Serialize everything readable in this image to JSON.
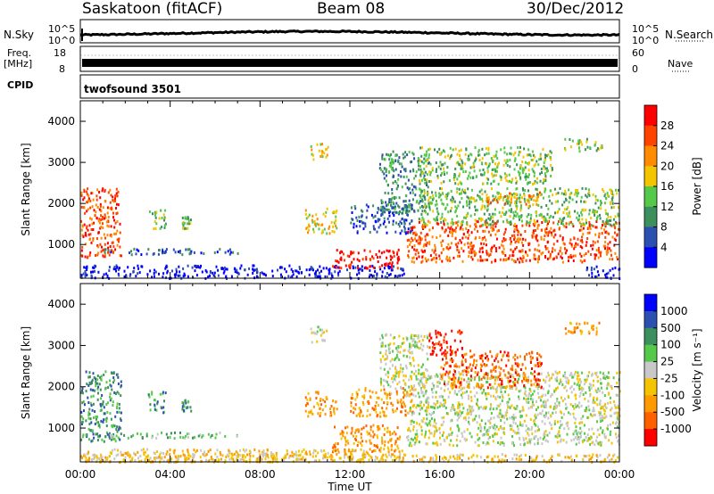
{
  "header": {
    "station": "Saskatoon (fitACF)",
    "beam": "Beam 08",
    "date": "30/Dec/2012"
  },
  "summary_panels": {
    "nsky_label": "N.Sky",
    "nsky_ticks": [
      "10^5",
      "10^0"
    ],
    "nsearch_label": "N.Search",
    "nsearch_ticks": [
      "10^5",
      "10^0"
    ],
    "freq_label_1": "Freq.",
    "freq_label_2": "[MHz]",
    "freq_ticks": [
      "18",
      "8"
    ],
    "nave_label": "Nave",
    "nave_ticks": [
      "60",
      "0"
    ],
    "cpid_label": "CPID",
    "cpid_value": "twofsound 3501",
    "line_color": "#000000"
  },
  "chart_data": [
    {
      "type": "heatmap",
      "panel": "power",
      "ylabel": "Slant Range [km]",
      "y_ticks": [
        1000,
        2000,
        3000,
        4000
      ],
      "ylim": [
        180,
        4500
      ],
      "xlim_hours": [
        0,
        24
      ],
      "colorbar_label": "Power [dB]",
      "colorbar_ticks": [
        "28",
        "24",
        "20",
        "16",
        "12",
        "8",
        "4"
      ],
      "colorbar_colors": [
        "#0000ff",
        "#2b50b0",
        "#3d8f5e",
        "#55c94a",
        "#f5c400",
        "#ff8c00",
        "#ff4400",
        "#ff0000"
      ],
      "scatter_blobs": [
        {
          "t0": 0.0,
          "t1": 1.8,
          "r0": 700,
          "r1": 2400,
          "level": 6
        },
        {
          "t0": 1.0,
          "t1": 7.0,
          "r0": 780,
          "r1": 920,
          "level": 1
        },
        {
          "t0": 3.0,
          "t1": 3.8,
          "r0": 1400,
          "r1": 1900,
          "level": 3
        },
        {
          "t0": 4.5,
          "t1": 4.9,
          "r0": 1400,
          "r1": 1700,
          "level": 3
        },
        {
          "t0": 0.0,
          "t1": 14.5,
          "r0": 200,
          "r1": 520,
          "level": 0
        },
        {
          "t0": 10.0,
          "t1": 11.4,
          "r0": 1300,
          "r1": 1900,
          "level": 4
        },
        {
          "t0": 11.2,
          "t1": 14.2,
          "r0": 450,
          "r1": 900,
          "level": 7
        },
        {
          "t0": 12.0,
          "t1": 14.8,
          "r0": 1300,
          "r1": 2000,
          "level": 1
        },
        {
          "t0": 10.2,
          "t1": 11.0,
          "r0": 3100,
          "r1": 3500,
          "level": 4
        },
        {
          "t0": 13.3,
          "t1": 15.5,
          "r0": 1800,
          "r1": 3300,
          "level": 2
        },
        {
          "t0": 14.5,
          "t1": 24.0,
          "r0": 600,
          "r1": 1600,
          "level": 6
        },
        {
          "t0": 15.0,
          "t1": 24.0,
          "r0": 1500,
          "r1": 2400,
          "level": 3
        },
        {
          "t0": 18.0,
          "t1": 20.5,
          "r0": 2000,
          "r1": 2300,
          "level": 5
        },
        {
          "t0": 15.0,
          "t1": 21.0,
          "r0": 2500,
          "r1": 3400,
          "level": 3
        },
        {
          "t0": 21.5,
          "t1": 23.2,
          "r0": 3300,
          "r1": 3600,
          "level": 3
        },
        {
          "t0": 22.5,
          "t1": 24.0,
          "r0": 200,
          "r1": 500,
          "level": 0
        }
      ]
    },
    {
      "type": "heatmap",
      "panel": "velocity",
      "ylabel": "Slant Range [km]",
      "xlabel": "Time UT",
      "x_ticks": [
        "00:00",
        "04:00",
        "08:00",
        "12:00",
        "16:00",
        "20:00",
        "00:00"
      ],
      "y_ticks": [
        1000,
        2000,
        3000,
        4000
      ],
      "ylim": [
        180,
        4500
      ],
      "xlim_hours": [
        0,
        24
      ],
      "colorbar_label": "Velocity [m s⁻¹]",
      "colorbar_ticks": [
        "1000",
        "500",
        "100",
        "25",
        "-25",
        "-100",
        "-500",
        "-1000"
      ],
      "colorbar_colors": [
        "#ff0000",
        "#ff6000",
        "#ff9a00",
        "#f5c400",
        "#c8c8c8",
        "#55c94a",
        "#3d8f5e",
        "#2b50b0",
        "#0000ff"
      ],
      "scatter_blobs": [
        {
          "t0": 0.0,
          "t1": 1.8,
          "r0": 700,
          "r1": 2400,
          "level": 6
        },
        {
          "t0": 1.0,
          "t1": 7.0,
          "r0": 780,
          "r1": 920,
          "level": 5
        },
        {
          "t0": 3.0,
          "t1": 3.8,
          "r0": 1400,
          "r1": 1900,
          "level": 6
        },
        {
          "t0": 4.5,
          "t1": 4.9,
          "r0": 1400,
          "r1": 1700,
          "level": 6
        },
        {
          "t0": 0.0,
          "t1": 14.5,
          "r0": 200,
          "r1": 520,
          "level": 3
        },
        {
          "t0": 10.0,
          "t1": 11.4,
          "r0": 1300,
          "r1": 1900,
          "level": 2
        },
        {
          "t0": 11.2,
          "t1": 14.2,
          "r0": 450,
          "r1": 1100,
          "level": 2
        },
        {
          "t0": 12.0,
          "t1": 14.8,
          "r0": 1300,
          "r1": 2000,
          "level": 2
        },
        {
          "t0": 10.2,
          "t1": 11.0,
          "r0": 3100,
          "r1": 3500,
          "level": 4
        },
        {
          "t0": 13.3,
          "t1": 15.5,
          "r0": 1800,
          "r1": 3300,
          "level": 4
        },
        {
          "t0": 14.5,
          "t1": 24.0,
          "r0": 600,
          "r1": 1600,
          "level": 4
        },
        {
          "t0": 15.0,
          "t1": 24.0,
          "r0": 1500,
          "r1": 2400,
          "level": 4
        },
        {
          "t0": 16.0,
          "t1": 20.5,
          "r0": 2000,
          "r1": 2900,
          "level": 1
        },
        {
          "t0": 15.5,
          "t1": 17.0,
          "r0": 2800,
          "r1": 3400,
          "level": 0
        },
        {
          "t0": 21.5,
          "t1": 23.2,
          "r0": 3300,
          "r1": 3600,
          "level": 2
        },
        {
          "t0": 0.0,
          "t1": 24.0,
          "r0": 200,
          "r1": 400,
          "level": 3
        }
      ]
    }
  ]
}
